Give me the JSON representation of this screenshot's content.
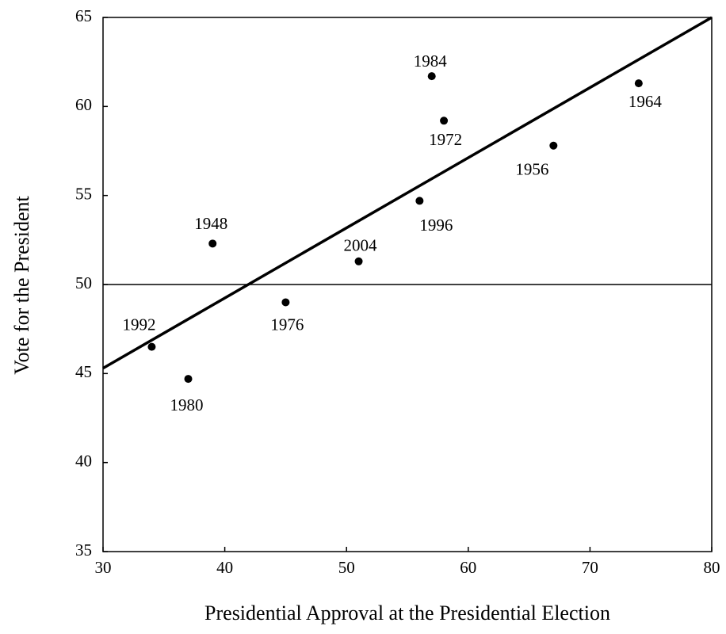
{
  "chart_data": {
    "type": "scatter",
    "x_label": "Presidential Approval at the Presidential Election",
    "y_label": "Vote for the President",
    "x": [
      57,
      58,
      74,
      67,
      56,
      51,
      39,
      45,
      34,
      37
    ],
    "values": [
      61.7,
      59.2,
      61.3,
      57.8,
      54.7,
      51.3,
      52.3,
      49.0,
      46.5,
      44.7
    ],
    "point_labels": [
      "1984",
      "1972",
      "1964",
      "1956",
      "1996",
      "2004",
      "1948",
      "1976",
      "1992",
      "1980"
    ],
    "color": "#000000",
    "fit_line": {
      "x": [
        30,
        80
      ],
      "y": [
        45.3,
        65
      ]
    },
    "reference_line": 50,
    "xlim": [
      30,
      80
    ],
    "ylim": [
      35,
      65
    ],
    "xticks": [
      30,
      40,
      50,
      60,
      70,
      80
    ],
    "yticks": [
      35,
      40,
      45,
      50,
      55,
      60,
      65
    ]
  }
}
